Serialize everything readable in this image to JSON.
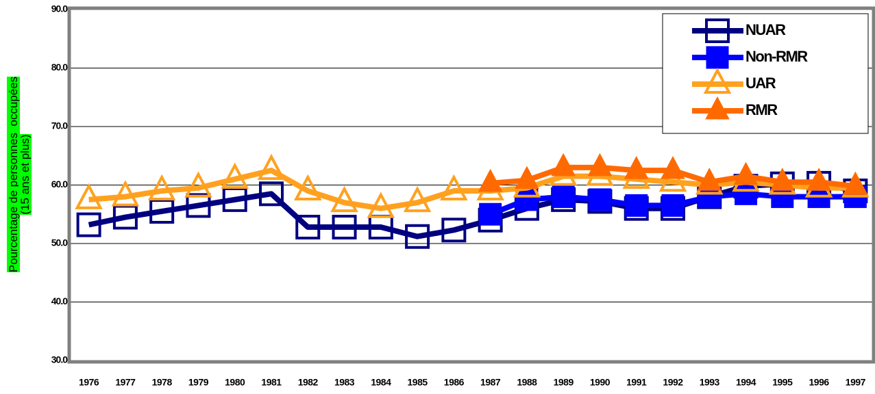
{
  "chart_data": {
    "type": "line",
    "y_label": [
      "Pourcentage de personnes  occupées",
      "(15 ans et plus)"
    ],
    "categories": [
      "1976",
      "1977",
      "1978",
      "1979",
      "1980",
      "1981",
      "1982",
      "1983",
      "1984",
      "1985",
      "1986",
      "1987",
      "1988",
      "1989",
      "1990",
      "1991",
      "1992",
      "1993",
      "1994",
      "1995",
      "1996",
      "1997"
    ],
    "series": [
      {
        "name": "NUAR",
        "color": "#000080",
        "marker": "square",
        "filled": false,
        "values": [
          53.2,
          54.5,
          55.5,
          56.5,
          57.5,
          58.5,
          52.8,
          52.8,
          52.8,
          51.2,
          52.3,
          54.0,
          56.0,
          57.5,
          57.2,
          56.0,
          56.0,
          58.0,
          59.8,
          60.2,
          60.3,
          59.0
        ]
      },
      {
        "name": "Non-RMR",
        "color": "#0000ff",
        "marker": "square",
        "filled": true,
        "values": [
          null,
          null,
          null,
          null,
          null,
          null,
          null,
          null,
          null,
          null,
          null,
          55.0,
          57.5,
          58.0,
          57.5,
          56.5,
          56.5,
          58.0,
          58.5,
          58.0,
          58.0,
          58.0
        ]
      },
      {
        "name": "UAR",
        "color": "#ffa11f",
        "marker": "triangle",
        "filled": false,
        "values": [
          57.5,
          58.0,
          59.0,
          59.5,
          61.0,
          62.5,
          59.0,
          57.0,
          56.0,
          57.0,
          59.0,
          59.0,
          59.5,
          61.5,
          61.5,
          61.0,
          60.5,
          60.0,
          60.5,
          60.0,
          59.5,
          59.5
        ]
      },
      {
        "name": "RMR",
        "color": "#ff6a00",
        "marker": "triangle",
        "filled": true,
        "values": [
          null,
          null,
          null,
          null,
          null,
          null,
          null,
          null,
          null,
          null,
          null,
          60.3,
          60.8,
          63.0,
          63.0,
          62.5,
          62.5,
          60.5,
          61.5,
          60.5,
          60.5,
          59.8
        ]
      }
    ],
    "ylim": [
      30,
      90
    ],
    "yticks": [
      {
        "value": 30,
        "label": "30.0"
      },
      {
        "value": 40,
        "label": "40.0"
      },
      {
        "value": 50,
        "label": "50.0"
      },
      {
        "value": 60,
        "label": "60.0"
      },
      {
        "value": 70,
        "label": "70.0"
      },
      {
        "value": 80,
        "label": "80.0"
      },
      {
        "value": 90,
        "label": "90.0"
      }
    ],
    "grid": true,
    "legend": "top-right"
  }
}
